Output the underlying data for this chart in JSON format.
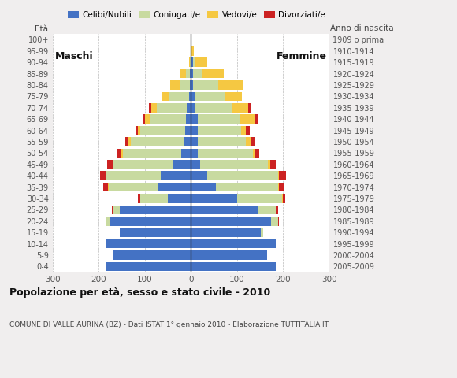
{
  "age_groups": [
    "0-4",
    "5-9",
    "10-14",
    "15-19",
    "20-24",
    "25-29",
    "30-34",
    "35-39",
    "40-44",
    "45-49",
    "50-54",
    "55-59",
    "60-64",
    "65-69",
    "70-74",
    "75-79",
    "80-84",
    "85-89",
    "90-94",
    "95-99",
    "100+"
  ],
  "birth_years": [
    "2005-2009",
    "2000-2004",
    "1995-1999",
    "1990-1994",
    "1985-1989",
    "1980-1984",
    "1975-1979",
    "1970-1974",
    "1965-1969",
    "1960-1964",
    "1955-1959",
    "1950-1954",
    "1945-1949",
    "1940-1944",
    "1935-1939",
    "1930-1934",
    "1925-1929",
    "1920-1924",
    "1915-1919",
    "1910-1914",
    "1909 o prima"
  ],
  "male_celibe": [
    185,
    170,
    185,
    155,
    175,
    155,
    50,
    70,
    65,
    38,
    20,
    15,
    12,
    10,
    9,
    3,
    2,
    2,
    0,
    0,
    0
  ],
  "male_coniugato": [
    0,
    0,
    0,
    0,
    8,
    12,
    60,
    108,
    118,
    130,
    128,
    115,
    98,
    80,
    65,
    45,
    20,
    8,
    2,
    0,
    0
  ],
  "male_vedovo": [
    0,
    0,
    0,
    0,
    0,
    0,
    0,
    2,
    2,
    2,
    2,
    5,
    5,
    10,
    12,
    15,
    22,
    13,
    2,
    0,
    0
  ],
  "male_divorziato": [
    0,
    0,
    0,
    0,
    0,
    5,
    5,
    10,
    12,
    12,
    10,
    8,
    5,
    5,
    5,
    0,
    0,
    0,
    0,
    0,
    0
  ],
  "female_nubile": [
    185,
    165,
    185,
    152,
    175,
    145,
    100,
    55,
    35,
    20,
    15,
    15,
    15,
    15,
    10,
    8,
    5,
    5,
    5,
    2,
    0
  ],
  "female_coniugata": [
    0,
    0,
    0,
    5,
    15,
    40,
    98,
    135,
    155,
    148,
    120,
    105,
    95,
    90,
    80,
    65,
    55,
    18,
    5,
    0,
    0
  ],
  "female_vedova": [
    0,
    0,
    0,
    0,
    0,
    0,
    2,
    2,
    2,
    5,
    5,
    10,
    10,
    35,
    35,
    38,
    52,
    48,
    25,
    5,
    0
  ],
  "female_divorziata": [
    0,
    0,
    0,
    0,
    2,
    5,
    5,
    12,
    15,
    12,
    8,
    8,
    8,
    5,
    5,
    0,
    0,
    0,
    0,
    0,
    0
  ],
  "colors": {
    "celibe_nubile": "#4472c4",
    "coniugato": "#c8daa0",
    "vedovo": "#f5c842",
    "divorziato": "#cc2222"
  },
  "title": "Popolazione per età, sesso e stato civile - 2010",
  "subtitle": "COMUNE DI VALLE AURINA (BZ) - Dati ISTAT 1° gennaio 2010 - Elaborazione TUTTITALIA.IT",
  "label_maschi": "Maschi",
  "label_femmine": "Femmine",
  "label_eta": "Età",
  "label_anno": "Anno di nascita",
  "legend_labels": [
    "Celibi/Nubili",
    "Coniugati/e",
    "Vedovi/e",
    "Divorziati/e"
  ],
  "xlim": 300,
  "xticks": [
    -300,
    -200,
    -100,
    0,
    100,
    200,
    300
  ],
  "background_color": "#f0eeee",
  "plot_bg_color": "#ffffff"
}
